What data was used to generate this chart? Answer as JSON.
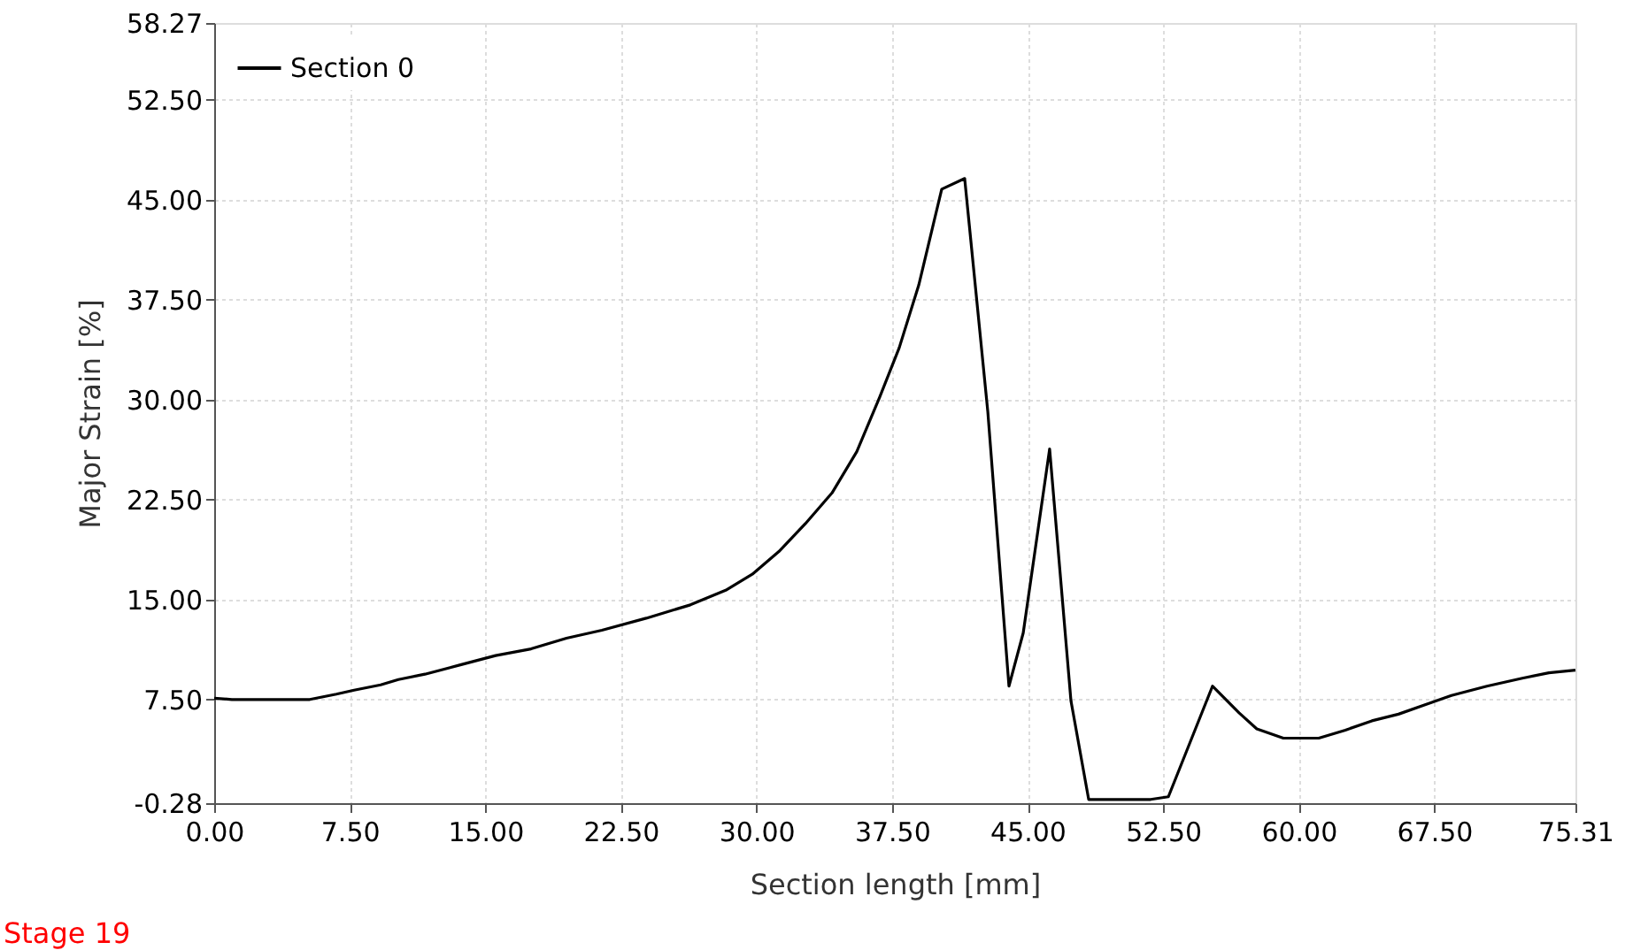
{
  "chart_data": {
    "type": "line",
    "xlabel": "Section length [mm]",
    "ylabel": "Major Strain [%]",
    "x": [
      0,
      0.98,
      5.29,
      6.76,
      7.74,
      9.21,
      10.19,
      11.66,
      13.62,
      15.57,
      17.53,
      19.49,
      21.45,
      23.9,
      26.34,
      28.3,
      29.77,
      31.24,
      32.71,
      34.18,
      35.55,
      36.82,
      37.9,
      38.98,
      40.25,
      41.52,
      42.8,
      43.97,
      44.76,
      46.22,
      47.4,
      48.38,
      51.81,
      52.79,
      55.23,
      56.7,
      57.68,
      59.15,
      61.11,
      62.58,
      64.05,
      65.52,
      66.99,
      68.45,
      70.41,
      72.37,
      73.84,
      75.31
    ],
    "series": [
      {
        "name": "Section 0",
        "color": "#000000",
        "values": [
          7.6,
          7.5,
          7.5,
          7.9,
          8.2,
          8.6,
          9.0,
          9.4,
          10.1,
          10.8,
          11.3,
          12.1,
          12.7,
          13.6,
          14.6,
          15.7,
          16.9,
          18.6,
          20.7,
          23.0,
          26.1,
          30.2,
          33.9,
          38.6,
          45.8,
          46.6,
          29.1,
          8.5,
          12.5,
          26.3,
          7.4,
          0.0,
          0.0,
          0.2,
          8.5,
          6.5,
          5.3,
          4.6,
          4.6,
          5.2,
          5.9,
          6.4,
          7.1,
          7.8,
          8.5,
          9.1,
          9.5,
          9.7
        ]
      }
    ],
    "xlim": [
      0,
      75.31
    ],
    "ylim": [
      -0.28,
      58.27
    ],
    "xticks": [
      {
        "value": 0,
        "label": "0.00"
      },
      {
        "value": 7.5,
        "label": "7.50"
      },
      {
        "value": 15,
        "label": "15.00"
      },
      {
        "value": 22.5,
        "label": "22.50"
      },
      {
        "value": 30,
        "label": "30.00"
      },
      {
        "value": 37.5,
        "label": "37.50"
      },
      {
        "value": 45,
        "label": "45.00"
      },
      {
        "value": 52.5,
        "label": "52.50"
      },
      {
        "value": 60,
        "label": "60.00"
      },
      {
        "value": 67.5,
        "label": "67.50"
      },
      {
        "value": 75.31,
        "label": "75.31"
      }
    ],
    "yticks": [
      {
        "value": -0.28,
        "label": "-0.28"
      },
      {
        "value": 7.5,
        "label": "7.50"
      },
      {
        "value": 15,
        "label": "15.00"
      },
      {
        "value": 22.5,
        "label": "22.50"
      },
      {
        "value": 30,
        "label": "30.00"
      },
      {
        "value": 37.5,
        "label": "37.50"
      },
      {
        "value": 45,
        "label": "45.00"
      },
      {
        "value": 52.5,
        "label": "52.50"
      },
      {
        "value": 58.27,
        "label": "58.27"
      }
    ],
    "grid": true,
    "legend": "top left",
    "line_style": "solid",
    "marker": "none",
    "annotations": [
      "Stage 19"
    ]
  }
}
